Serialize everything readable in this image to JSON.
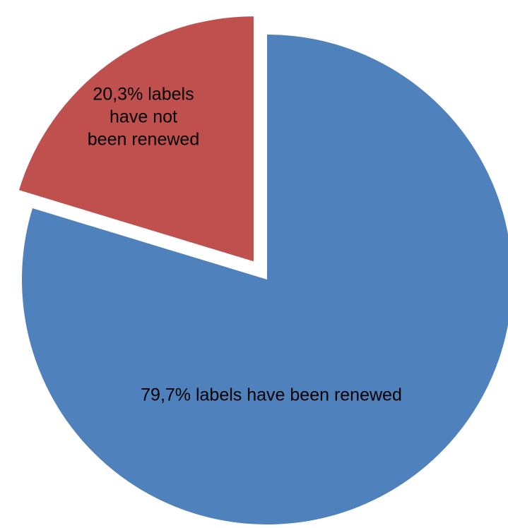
{
  "chart_data": {
    "type": "pie",
    "title": "",
    "slices": [
      {
        "value": 79.7,
        "label_lines": [
          "79,7% labels have been renewed"
        ],
        "color": "#4f81bd",
        "exploded": false
      },
      {
        "value": 20.3,
        "label_lines": [
          "20,3% labels",
          "have not",
          "been renewed"
        ],
        "color": "#c0504d",
        "exploded": true
      }
    ],
    "start_angle": "12 o'clock",
    "direction": "clockwise",
    "legend": "none"
  }
}
